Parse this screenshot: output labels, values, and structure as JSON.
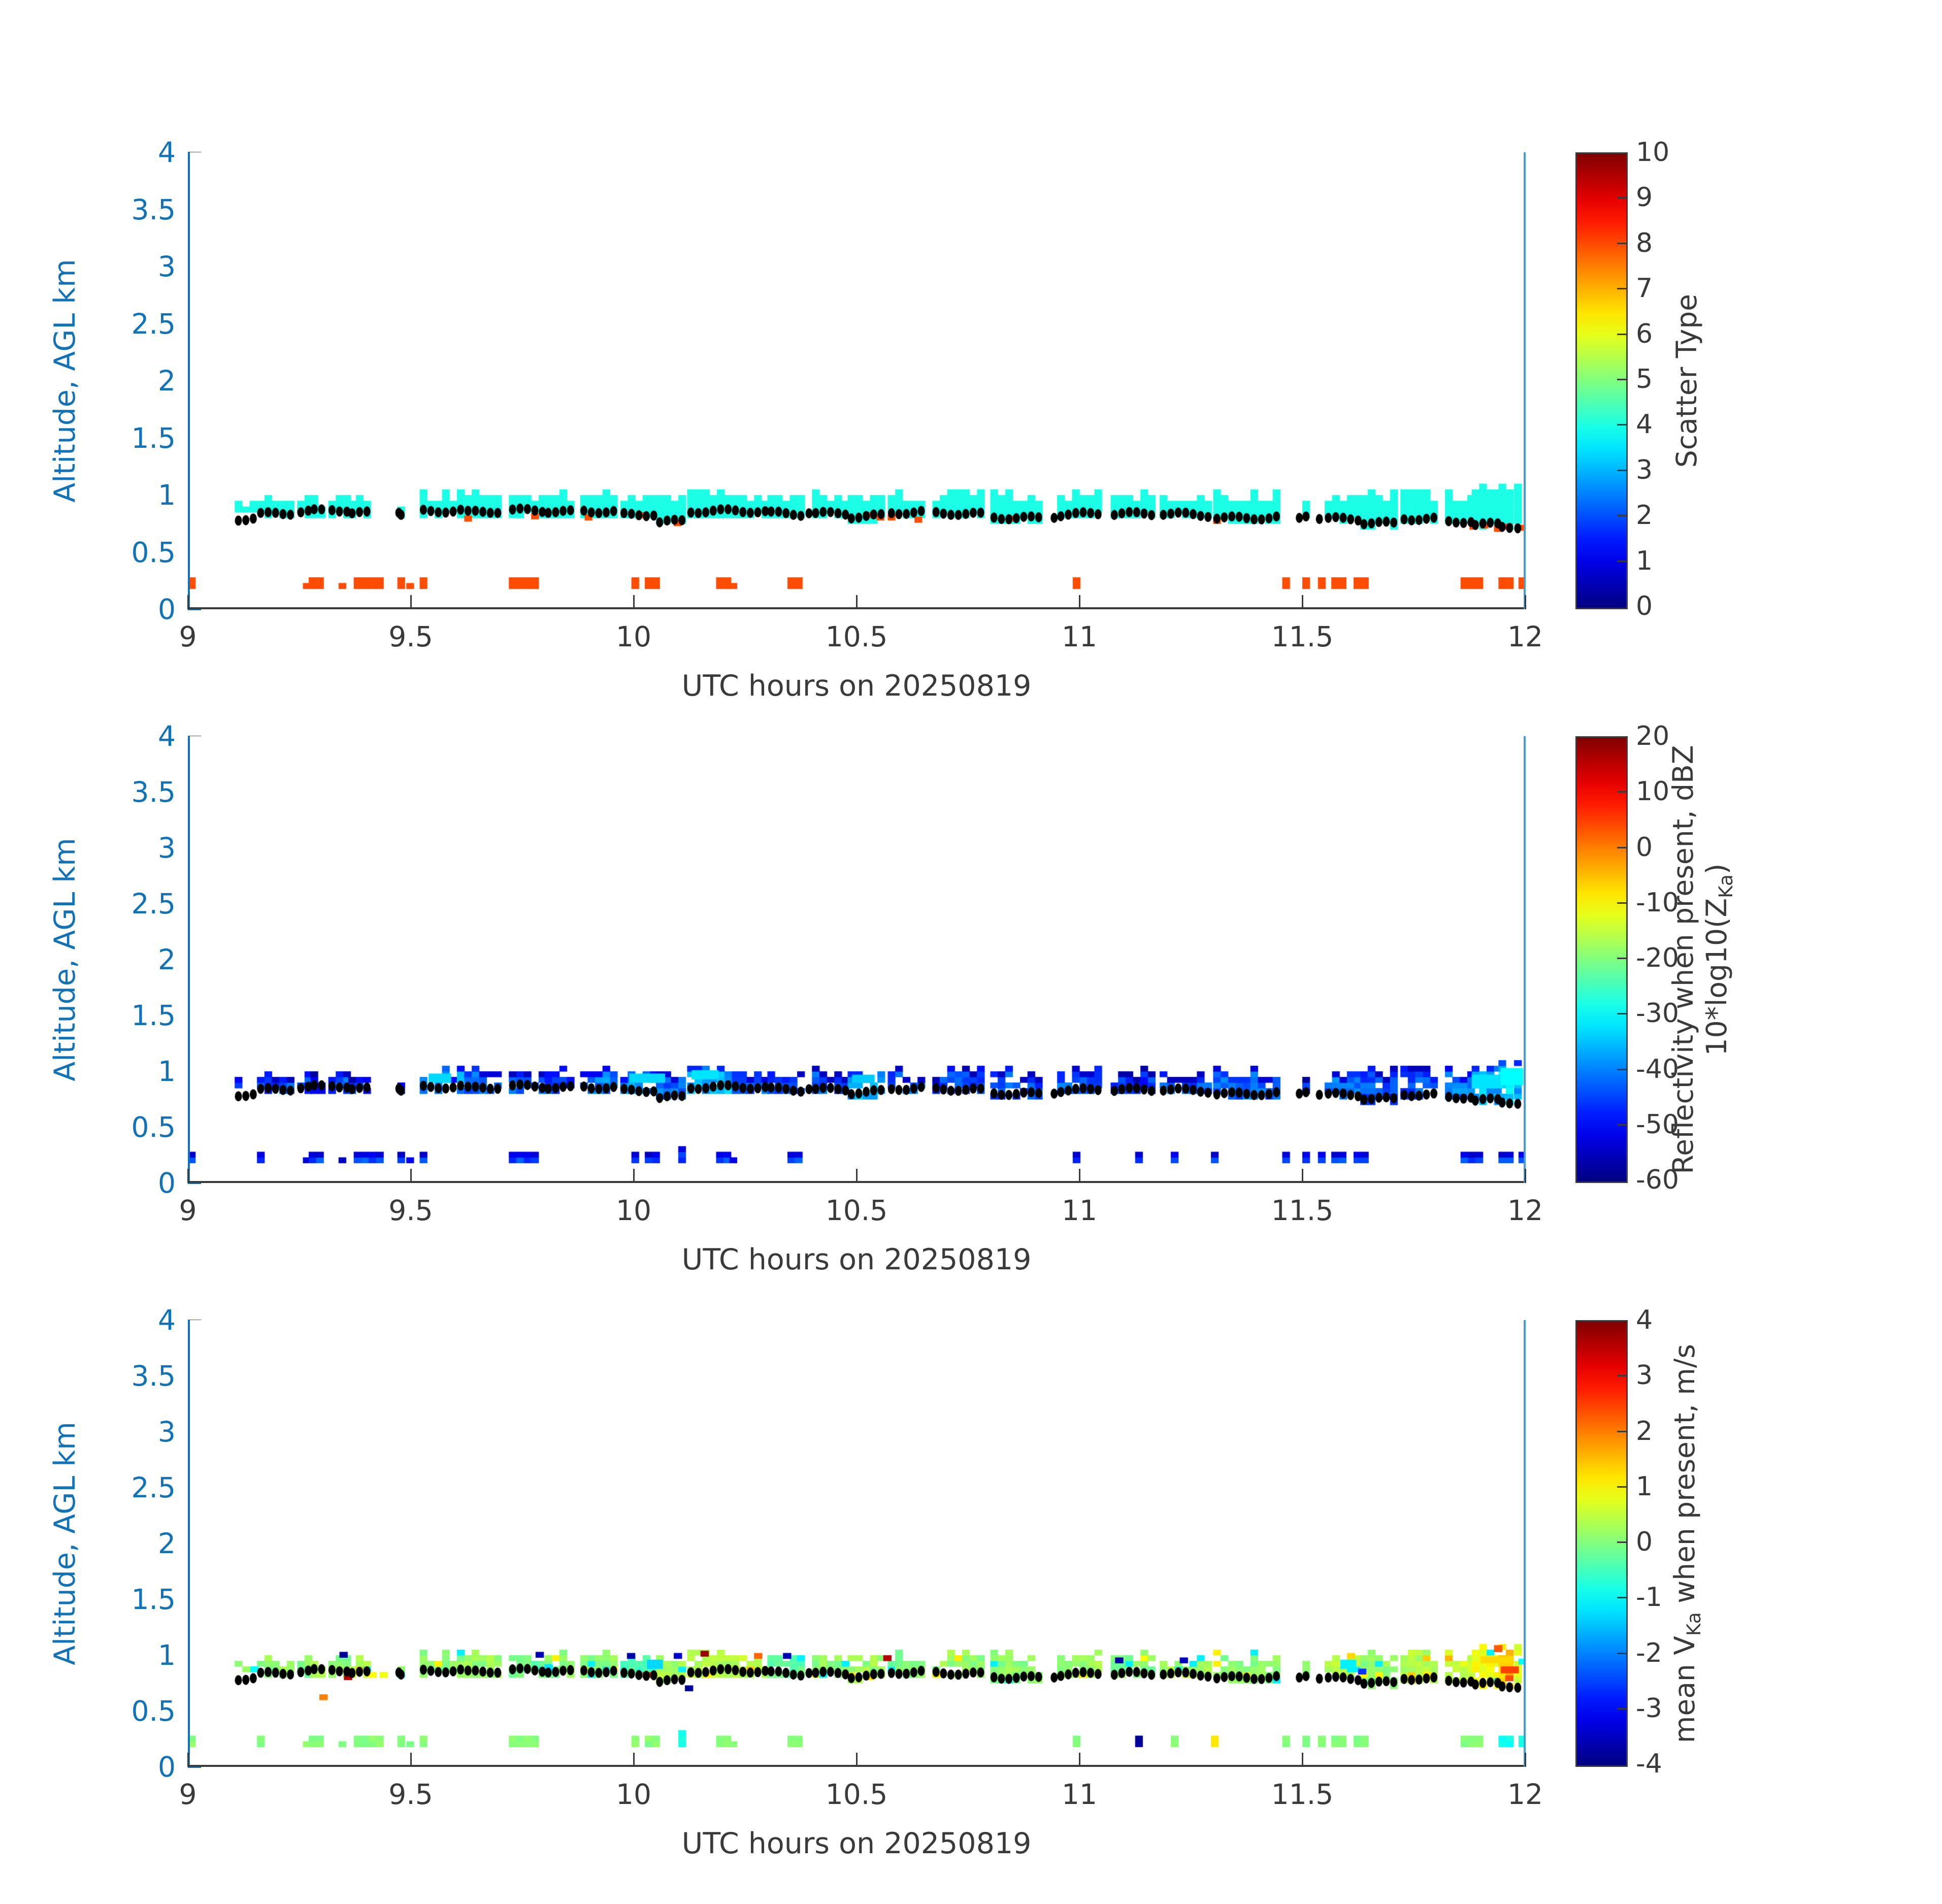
{
  "figure": {
    "background": "#ffffff",
    "y_axis_color": "#1272b8",
    "x_axis_color": "#3a3a3a",
    "end_marker_color": "#4a9bd5",
    "dot_color": "#000000"
  },
  "chart_data": {
    "type": "heatmap",
    "description": "Three stacked time-height radar panels sharing the same footprint of detections",
    "x": {
      "label": "UTC hours on 20250819",
      "min": 9,
      "max": 12,
      "ticks": [
        9,
        9.5,
        10,
        10.5,
        11,
        11.5,
        12
      ],
      "tick_labels": [
        "9",
        "9.5",
        "10",
        "10.5",
        "11",
        "11.5",
        "12"
      ]
    },
    "y": {
      "label": "Altitude, AGL km",
      "min": 0,
      "max": 4,
      "ticks": [
        0,
        0.5,
        1,
        1.5,
        2,
        2.5,
        3,
        3.5,
        4
      ],
      "tick_labels": [
        "0",
        "0.5",
        "1",
        "1.5",
        "2",
        "2.5",
        "3",
        "3.5",
        "4"
      ]
    },
    "time_step_hours": 0.0167,
    "cell_height_km": 0.05,
    "colormap": "jet",
    "panels": [
      {
        "name": "scatter-type",
        "colorbar_label": "Scatter Type",
        "cmin": 0,
        "cmax": 10,
        "ctick_values": [
          0,
          1,
          2,
          3,
          4,
          5,
          6,
          7,
          8,
          9,
          10
        ],
        "ctick_labels": [
          "0",
          "1",
          "2",
          "3",
          "4",
          "5",
          "6",
          "7",
          "8",
          "9",
          "10"
        ],
        "band_value": 4,
        "clutter_value": 8
      },
      {
        "name": "reflectivity",
        "colorbar_label_lines": [
          "Reflectivity when present, dBZ",
          "10*log10(Z~Ka~)"
        ],
        "cmin": -60,
        "cmax": 20,
        "ctick_values": [
          -60,
          -50,
          -40,
          -30,
          -20,
          -10,
          0,
          10,
          20
        ],
        "ctick_labels": [
          "-60",
          "-50",
          "-40",
          "-30",
          "-20",
          "-10",
          "0",
          "10",
          "20"
        ]
      },
      {
        "name": "mean-velocity",
        "colorbar_label": "mean V~Ka~ when present, m/s",
        "cmin": -4,
        "cmax": 4,
        "ctick_values": [
          -4,
          -3,
          -2,
          -1,
          0,
          1,
          2,
          3,
          4
        ],
        "ctick_labels": [
          "-4",
          "-3",
          "-2",
          "-1",
          "0",
          "1",
          "2",
          "3",
          "4"
        ]
      }
    ],
    "cloud_band_blocks_format": "[t_start_h, t_end_h, base_km, top_km, cloud_base_dot_km, mean_dBZ, mean_V_ms]",
    "cloud_band_blocks": [
      [
        9.105,
        9.155,
        0.78,
        0.95,
        0.8,
        -46,
        0.1
      ],
      [
        9.155,
        9.245,
        0.78,
        0.95,
        0.835,
        -44,
        0.15
      ],
      [
        9.245,
        9.275,
        0.78,
        1.0,
        0.845,
        -45,
        0.0
      ],
      [
        9.275,
        9.315,
        0.8,
        0.95,
        0.85,
        -47,
        0.2
      ],
      [
        9.315,
        9.36,
        0.8,
        1.0,
        0.86,
        -44,
        0.1
      ],
      [
        9.36,
        9.405,
        0.78,
        0.95,
        0.84,
        -46,
        0.5
      ],
      [
        9.47,
        9.49,
        0.78,
        0.92,
        0.845,
        -48,
        0.0
      ],
      [
        9.52,
        9.62,
        0.82,
        1.02,
        0.87,
        -38,
        0.1
      ],
      [
        9.62,
        9.705,
        0.78,
        1.02,
        0.85,
        -42,
        0.2
      ],
      [
        9.72,
        9.8,
        0.8,
        1.0,
        0.855,
        -44,
        -0.2
      ],
      [
        9.8,
        9.862,
        0.82,
        0.98,
        0.85,
        -45,
        0.1
      ],
      [
        9.88,
        9.97,
        0.8,
        1.02,
        0.865,
        -40,
        0.1
      ],
      [
        9.97,
        10.05,
        0.8,
        1.0,
        0.84,
        -38,
        -0.4
      ],
      [
        10.05,
        10.12,
        0.76,
        1.0,
        0.77,
        -42,
        0.3
      ],
      [
        10.12,
        10.22,
        0.8,
        1.03,
        0.85,
        -36,
        0.4
      ],
      [
        10.22,
        10.3,
        0.8,
        1.0,
        0.85,
        -42,
        0.5
      ],
      [
        10.3,
        10.385,
        0.78,
        1.0,
        0.84,
        -44,
        -0.2
      ],
      [
        10.4,
        10.48,
        0.8,
        0.98,
        0.85,
        -44,
        0.1
      ],
      [
        10.48,
        10.57,
        0.76,
        1.02,
        0.82,
        -36,
        0.2
      ],
      [
        10.57,
        10.65,
        0.78,
        1.0,
        0.84,
        -43,
        0.0
      ],
      [
        10.67,
        10.78,
        0.78,
        0.98,
        0.83,
        -45,
        0.15
      ],
      [
        10.8,
        10.92,
        0.76,
        0.98,
        0.81,
        -44,
        0.1
      ],
      [
        10.95,
        11.05,
        0.78,
        1.02,
        0.835,
        -43,
        0.2
      ],
      [
        11.07,
        11.17,
        0.78,
        0.98,
        0.825,
        -46,
        0.0
      ],
      [
        11.18,
        11.3,
        0.78,
        1.0,
        0.83,
        -44,
        0.3
      ],
      [
        11.3,
        11.45,
        0.76,
        0.98,
        0.81,
        -42,
        0.1
      ],
      [
        11.5,
        11.52,
        0.8,
        0.95,
        0.82,
        -48,
        0.0
      ],
      [
        11.55,
        11.63,
        0.74,
        1.0,
        0.78,
        -42,
        0.4
      ],
      [
        11.63,
        11.72,
        0.72,
        0.98,
        0.75,
        -44,
        0.1
      ],
      [
        11.72,
        11.8,
        0.76,
        0.98,
        0.8,
        -44,
        0.4
      ],
      [
        11.82,
        11.88,
        0.74,
        1.0,
        0.78,
        -40,
        0.6
      ],
      [
        11.88,
        11.94,
        0.72,
        1.06,
        0.745,
        -36,
        0.9
      ],
      [
        11.94,
        11.975,
        0.7,
        1.12,
        0.72,
        -33,
        1.4
      ],
      [
        11.975,
        12.0,
        0.72,
        1.05,
        0.715,
        -36,
        0.7
      ]
    ],
    "surface_blocks_format": "[t_start_h, t_end_h, y_bottom_km, y_top_km, present_in_panel1, V_override_ms_or_null]",
    "surface_blocks": [
      [
        9.0,
        9.02,
        0.18,
        0.28,
        1,
        null
      ],
      [
        9.155,
        9.175,
        0.18,
        0.28,
        0,
        null
      ],
      [
        9.258,
        9.271,
        0.18,
        0.23,
        1,
        null
      ],
      [
        9.271,
        9.305,
        0.18,
        0.28,
        1,
        null
      ],
      [
        9.338,
        9.357,
        0.18,
        0.23,
        1,
        null
      ],
      [
        9.372,
        9.438,
        0.18,
        0.28,
        1,
        null
      ],
      [
        9.47,
        9.49,
        0.18,
        0.28,
        1,
        null
      ],
      [
        9.49,
        9.505,
        0.18,
        0.23,
        1,
        null
      ],
      [
        9.52,
        9.54,
        0.18,
        0.28,
        1,
        null
      ],
      [
        9.72,
        9.79,
        0.18,
        0.28,
        1,
        null
      ],
      [
        9.995,
        10.012,
        0.18,
        0.28,
        1,
        null
      ],
      [
        10.025,
        10.055,
        0.18,
        0.28,
        1,
        null
      ],
      [
        10.1,
        10.115,
        0.18,
        0.33,
        0,
        -0.8
      ],
      [
        10.185,
        10.215,
        0.18,
        0.28,
        1,
        null
      ],
      [
        10.215,
        10.235,
        0.18,
        0.23,
        1,
        null
      ],
      [
        10.345,
        10.375,
        0.18,
        0.28,
        1,
        null
      ],
      [
        10.985,
        11.0,
        0.18,
        0.28,
        1,
        null
      ],
      [
        11.125,
        11.14,
        0.18,
        0.28,
        0,
        -3.8
      ],
      [
        11.205,
        11.22,
        0.18,
        0.28,
        0,
        null
      ],
      [
        11.295,
        11.315,
        0.18,
        0.28,
        0,
        1.1
      ],
      [
        11.455,
        11.475,
        0.18,
        0.28,
        1,
        null
      ],
      [
        11.5,
        11.515,
        0.18,
        0.28,
        1,
        null
      ],
      [
        11.535,
        11.555,
        0.18,
        0.28,
        1,
        null
      ],
      [
        11.565,
        11.605,
        0.18,
        0.28,
        1,
        null
      ],
      [
        11.615,
        11.645,
        0.18,
        0.28,
        1,
        null
      ],
      [
        11.855,
        11.905,
        0.18,
        0.28,
        1,
        null
      ],
      [
        11.94,
        11.97,
        0.18,
        0.28,
        1,
        -0.9
      ],
      [
        11.985,
        12.0,
        0.18,
        0.28,
        1,
        -0.8
      ]
    ],
    "band_clutter_cells_format": "[t_h, y_km] scatter-type=8 cells at cloud-band base (panel 1 only)",
    "band_clutter_cells": [
      [
        9.62,
        0.77
      ],
      [
        9.77,
        0.79
      ],
      [
        9.89,
        0.78
      ],
      [
        10.015,
        0.8
      ],
      [
        10.09,
        0.73
      ],
      [
        10.515,
        0.8
      ],
      [
        10.545,
        0.78
      ],
      [
        10.57,
        0.78
      ],
      [
        10.63,
        0.76
      ],
      [
        10.84,
        0.77
      ],
      [
        11.3,
        0.75
      ],
      [
        11.875,
        0.7
      ],
      [
        11.9,
        0.71
      ],
      [
        11.93,
        0.68
      ],
      [
        11.955,
        0.7
      ],
      [
        11.985,
        0.69
      ]
    ],
    "reflectivity_extra_cells_format": "[t_h, y_km, w_h, h_km, dBZ]",
    "reflectivity_extra_cells": [
      [
        9.54,
        0.9,
        0.05,
        0.08,
        -33
      ],
      [
        9.99,
        0.9,
        0.08,
        0.08,
        -33
      ],
      [
        10.13,
        0.93,
        0.06,
        0.08,
        -32
      ],
      [
        10.49,
        0.9,
        0.05,
        0.07,
        -34
      ],
      [
        11.88,
        0.85,
        0.07,
        0.12,
        -32
      ],
      [
        11.945,
        0.88,
        0.05,
        0.15,
        -30
      ]
    ],
    "velocity_extra_cells_format": "[t_h, y_km, w_h, h_km, V_ms]",
    "velocity_extra_cells": [
      [
        9.34,
        0.98,
        0.018,
        0.05,
        -3.8
      ],
      [
        9.35,
        0.78,
        0.018,
        0.05,
        3.6
      ],
      [
        9.295,
        0.6,
        0.018,
        0.05,
        2.0
      ],
      [
        9.405,
        0.8,
        0.018,
        0.05,
        1.0
      ],
      [
        9.43,
        0.8,
        0.018,
        0.05,
        0.9
      ],
      [
        9.14,
        0.85,
        0.018,
        0.05,
        -1.0
      ],
      [
        9.78,
        0.98,
        0.018,
        0.05,
        -3.6
      ],
      [
        9.8,
        0.85,
        0.018,
        0.07,
        -1.2
      ],
      [
        9.985,
        0.97,
        0.018,
        0.05,
        -3.7
      ],
      [
        10.02,
        0.8,
        0.018,
        0.05,
        2.6
      ],
      [
        10.03,
        0.88,
        0.035,
        0.08,
        -1.3
      ],
      [
        10.09,
        0.97,
        0.018,
        0.05,
        -3.4
      ],
      [
        10.115,
        0.68,
        0.018,
        0.05,
        -3.8
      ],
      [
        10.15,
        0.99,
        0.018,
        0.05,
        3.8
      ],
      [
        10.155,
        0.8,
        0.018,
        0.05,
        1.1
      ],
      [
        10.27,
        0.97,
        0.018,
        0.05,
        2.2
      ],
      [
        10.335,
        0.97,
        0.018,
        0.05,
        -3.6
      ],
      [
        10.52,
        0.78,
        0.018,
        0.05,
        1.2
      ],
      [
        10.56,
        0.95,
        0.018,
        0.05,
        3.6
      ],
      [
        11.08,
        0.93,
        0.018,
        0.05,
        -3.7
      ],
      [
        11.225,
        0.93,
        0.018,
        0.05,
        -3.5
      ],
      [
        11.585,
        0.88,
        0.035,
        0.08,
        -1.1
      ],
      [
        11.6,
        0.97,
        0.018,
        0.05,
        1.3
      ],
      [
        11.625,
        0.83,
        0.018,
        0.05,
        -2.6
      ],
      [
        11.77,
        0.78,
        0.02,
        0.07,
        1.1
      ],
      [
        11.9,
        0.93,
        0.07,
        0.06,
        1.3
      ],
      [
        11.93,
        1.03,
        0.018,
        0.06,
        2.3
      ],
      [
        11.945,
        0.84,
        0.04,
        0.06,
        2.5
      ],
      [
        11.955,
        0.77,
        0.018,
        0.05,
        2.4
      ],
      [
        11.985,
        0.92,
        0.018,
        0.05,
        -1.0
      ]
    ],
    "cloud_base_extra_dots_format": "[t_h, y_km] isolated cloud-base dots with no band",
    "cloud_base_extra_dots": [
      [
        9.465,
        0.845
      ],
      [
        10.385,
        0.84
      ],
      [
        10.935,
        0.8
      ],
      [
        11.485,
        0.8
      ],
      [
        11.53,
        0.79
      ]
    ]
  }
}
